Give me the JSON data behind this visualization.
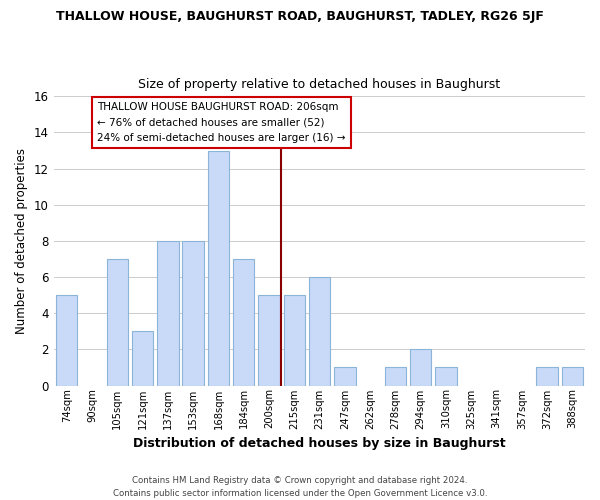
{
  "title": "THALLOW HOUSE, BAUGHURST ROAD, BAUGHURST, TADLEY, RG26 5JF",
  "subtitle": "Size of property relative to detached houses in Baughurst",
  "xlabel": "Distribution of detached houses by size in Baughurst",
  "ylabel": "Number of detached properties",
  "bar_color": "#c9daf8",
  "bar_edge_color": "#8ab4d8",
  "grid_color": "#cccccc",
  "background_color": "#ffffff",
  "bins": [
    "74sqm",
    "90sqm",
    "105sqm",
    "121sqm",
    "137sqm",
    "153sqm",
    "168sqm",
    "184sqm",
    "200sqm",
    "215sqm",
    "231sqm",
    "247sqm",
    "262sqm",
    "278sqm",
    "294sqm",
    "310sqm",
    "325sqm",
    "341sqm",
    "357sqm",
    "372sqm",
    "388sqm"
  ],
  "values": [
    5,
    0,
    7,
    3,
    8,
    8,
    13,
    7,
    5,
    5,
    6,
    1,
    0,
    1,
    2,
    1,
    0,
    0,
    0,
    1,
    1
  ],
  "ylim": [
    0,
    16
  ],
  "yticks": [
    0,
    2,
    4,
    6,
    8,
    10,
    12,
    14,
    16
  ],
  "vline_color": "#880000",
  "annotation_line1": "THALLOW HOUSE BAUGHURST ROAD: 206sqm",
  "annotation_line2": "← 76% of detached houses are smaller (52)",
  "annotation_line3": "24% of semi-detached houses are larger (16) →",
  "annotation_box_color": "#ffffff",
  "annotation_box_edge_color": "#cc0000",
  "footer1": "Contains HM Land Registry data © Crown copyright and database right 2024.",
  "footer2": "Contains public sector information licensed under the Open Government Licence v3.0."
}
